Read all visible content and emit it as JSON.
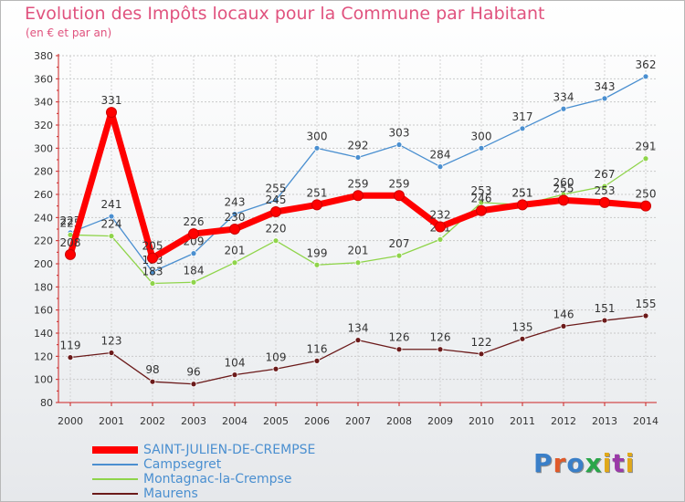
{
  "title": "Evolution des Impôts locaux pour la Commune par Habitant",
  "subtitle": "(en € et par an)",
  "logo": {
    "text": "Proxiti",
    "colors": [
      "#3a7fc8",
      "#e05a2a",
      "#3a7fc8",
      "#2aa64a",
      "#e0a81a",
      "#9a3aa8",
      "#e0a81a"
    ]
  },
  "chart_data": {
    "type": "line",
    "x": [
      "2000",
      "2001",
      "2002",
      "2003",
      "2004",
      "2005",
      "2006",
      "2007",
      "2008",
      "2009",
      "2010",
      "2011",
      "2012",
      "2013",
      "2014"
    ],
    "ylim": [
      80,
      380
    ],
    "yticks": [
      80,
      100,
      120,
      140,
      160,
      180,
      200,
      220,
      240,
      260,
      280,
      300,
      320,
      340,
      360,
      380
    ],
    "grid": true,
    "legend_position": "bottom-left",
    "series": [
      {
        "name": "Campsegret",
        "color": "#4a8fd0",
        "values": [
          227,
          241,
          193,
          209,
          243,
          255,
          300,
          292,
          303,
          284,
          300,
          317,
          334,
          343,
          362
        ]
      },
      {
        "name": "Montagnac-la-Crempse",
        "color": "#8fd44a",
        "values": [
          225,
          224,
          183,
          184,
          201,
          220,
          199,
          201,
          207,
          221,
          253,
          251,
          260,
          267,
          291
        ]
      },
      {
        "name": "Maurens",
        "color": "#6b1a1a",
        "values": [
          119,
          123,
          98,
          96,
          104,
          109,
          116,
          134,
          126,
          126,
          122,
          135,
          146,
          151,
          155
        ]
      },
      {
        "name": "SAINT-JULIEN-DE-CREMPSE",
        "color": "#ff0000",
        "values": [
          208,
          331,
          205,
          226,
          230,
          245,
          251,
          259,
          259,
          232,
          246,
          251,
          255,
          253,
          250
        ]
      }
    ],
    "legend": [
      {
        "name": "SAINT-JULIEN-DE-CREMPSE",
        "color": "#ff0000"
      },
      {
        "name": "Campsegret",
        "color": "#4a8fd0"
      },
      {
        "name": "Montagnac-la-Crempse",
        "color": "#8fd44a"
      },
      {
        "name": "Maurens",
        "color": "#6b1a1a"
      }
    ]
  }
}
